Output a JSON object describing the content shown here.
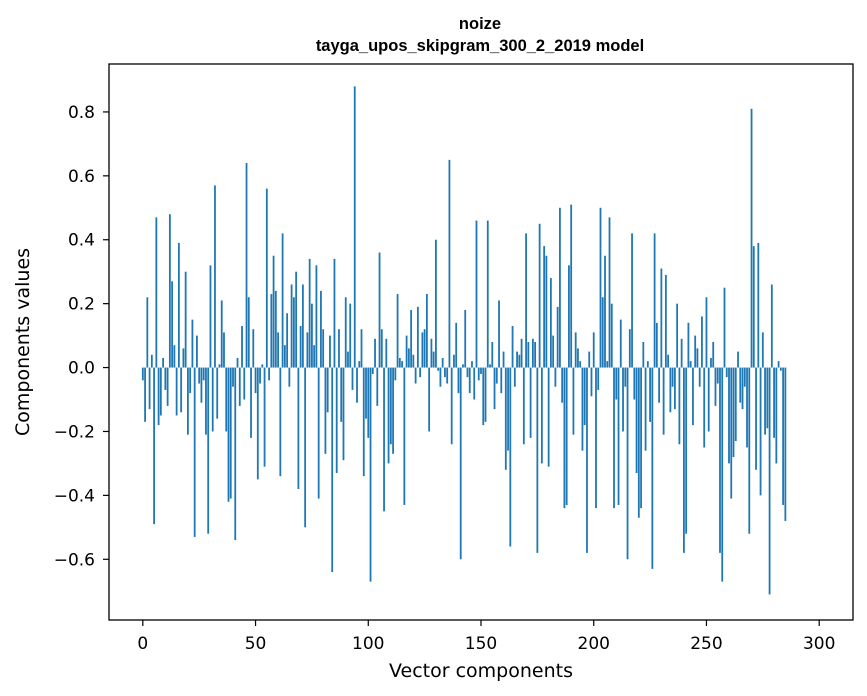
{
  "chart_data": {
    "type": "bar",
    "title": "noize",
    "subtitle": "tayga_upos_skipgram_300_2_2019 model",
    "xlabel": "Vector components",
    "ylabel": "Components values",
    "xlim": [
      -15,
      315
    ],
    "ylim": [
      -0.79,
      0.95
    ],
    "xticks": [
      0,
      50,
      100,
      150,
      200,
      250,
      300
    ],
    "yticks": [
      -0.6,
      -0.4,
      -0.2,
      0.0,
      0.2,
      0.4,
      0.6,
      0.8
    ],
    "xtick_labels": [
      "0",
      "50",
      "100",
      "150",
      "200",
      "250",
      "300"
    ],
    "ytick_labels": [
      "−0.6",
      "−0.4",
      "−0.2",
      "0.0",
      "0.2",
      "0.4",
      "0.6",
      "0.8"
    ],
    "bar_color": "#1f77b4",
    "grid": false,
    "values": [
      -0.04,
      -0.17,
      0.22,
      -0.13,
      0.04,
      -0.49,
      0.47,
      -0.18,
      -0.15,
      0.03,
      -0.07,
      -0.12,
      0.48,
      0.27,
      0.07,
      -0.15,
      0.39,
      -0.14,
      0.06,
      0.3,
      -0.21,
      -0.08,
      0.15,
      -0.53,
      0.1,
      -0.05,
      -0.11,
      -0.04,
      -0.21,
      -0.52,
      0.32,
      -0.2,
      0.57,
      -0.16,
      0.01,
      0.21,
      0.11,
      -0.2,
      -0.42,
      -0.41,
      -0.06,
      -0.54,
      0.03,
      -0.12,
      0.13,
      -0.1,
      0.64,
      0.22,
      -0.22,
      0.12,
      -0.08,
      -0.35,
      -0.05,
      0.01,
      -0.31,
      0.56,
      -0.04,
      0.23,
      0.35,
      0.24,
      0.11,
      -0.34,
      0.42,
      0.07,
      0.17,
      -0.06,
      0.26,
      0.22,
      0.3,
      -0.38,
      0.13,
      0.26,
      -0.5,
      0.11,
      0.34,
      0.2,
      0.07,
      0.32,
      -0.41,
      0.24,
      0.12,
      -0.27,
      -0.14,
      0.1,
      -0.64,
      0.34,
      -0.33,
      0.12,
      -0.17,
      -0.29,
      0.22,
      0.05,
      0.2,
      -0.07,
      0.88,
      -0.11,
      0.02,
      0.12,
      -0.34,
      -0.16,
      -0.22,
      -0.67,
      -0.02,
      0.09,
      -0.12,
      0.36,
      0.12,
      -0.45,
      0.09,
      -0.3,
      -0.24,
      -0.27,
      -0.04,
      0.23,
      0.03,
      0.02,
      -0.43,
      0.1,
      0.06,
      0.18,
      0.04,
      -0.05,
      0.19,
      -0.03,
      0.11,
      0.12,
      0.23,
      -0.2,
      0.09,
      0.05,
      0.4,
      -0.01,
      -0.06,
      0.03,
      -0.03,
      -0.05,
      0.65,
      -0.24,
      0.04,
      0.14,
      -0.08,
      -0.6,
      0.01,
      0.18,
      -0.03,
      -0.08,
      0.02,
      -0.1,
      0.46,
      -0.04,
      -0.02,
      -0.18,
      -0.17,
      0.46,
      0.01,
      0.08,
      -0.13,
      -0.05,
      0.21,
      -0.08,
      0.05,
      -0.32,
      -0.26,
      -0.56,
      0.13,
      -0.06,
      0.05,
      0.04,
      0.09,
      -0.24,
      0.42,
      0.08,
      -0.22,
      0.09,
      0.08,
      -0.58,
      0.45,
      -0.3,
      0.38,
      0.35,
      -0.31,
      0.28,
      0.1,
      -0.06,
      0.19,
      0.5,
      -0.11,
      -0.44,
      -0.43,
      0.32,
      0.51,
      -0.21,
      0.11,
      0.06,
      0.02,
      -0.26,
      -0.18,
      -0.58,
      0.05,
      -0.09,
      0.11,
      -0.44,
      -0.07,
      0.5,
      0.22,
      0.35,
      0.02,
      0.47,
      0.2,
      -0.44,
      -0.1,
      -0.43,
      0.15,
      -0.2,
      -0.06,
      -0.6,
      0.12,
      0.42,
      -0.1,
      -0.33,
      -0.47,
      -0.44,
      0.08,
      -0.26,
      0.02,
      -0.17,
      -0.63,
      0.42,
      0.14,
      -0.11,
      0.31,
      -0.21,
      0.29,
      0.04,
      -0.14,
      -0.06,
      -0.13,
      0.2,
      -0.24,
      0.09,
      -0.58,
      -0.52,
      0.14,
      0.02,
      -0.18,
      0.1,
      0.06,
      -0.06,
      0.16,
      -0.25,
      0.22,
      -0.2,
      0.03,
      0.08,
      -0.12,
      -0.05,
      -0.58,
      -0.67,
      0.25,
      -0.03,
      -0.3,
      -0.41,
      -0.28,
      -0.23,
      0.05,
      -0.11,
      -0.13,
      -0.06,
      -0.25,
      -0.52,
      0.81,
      0.38,
      -0.32,
      0.39,
      -0.4,
      0.11,
      -0.21,
      -0.19,
      -0.71,
      0.26,
      -0.22,
      -0.3,
      0.02,
      -0.01,
      -0.43,
      -0.48
    ]
  }
}
